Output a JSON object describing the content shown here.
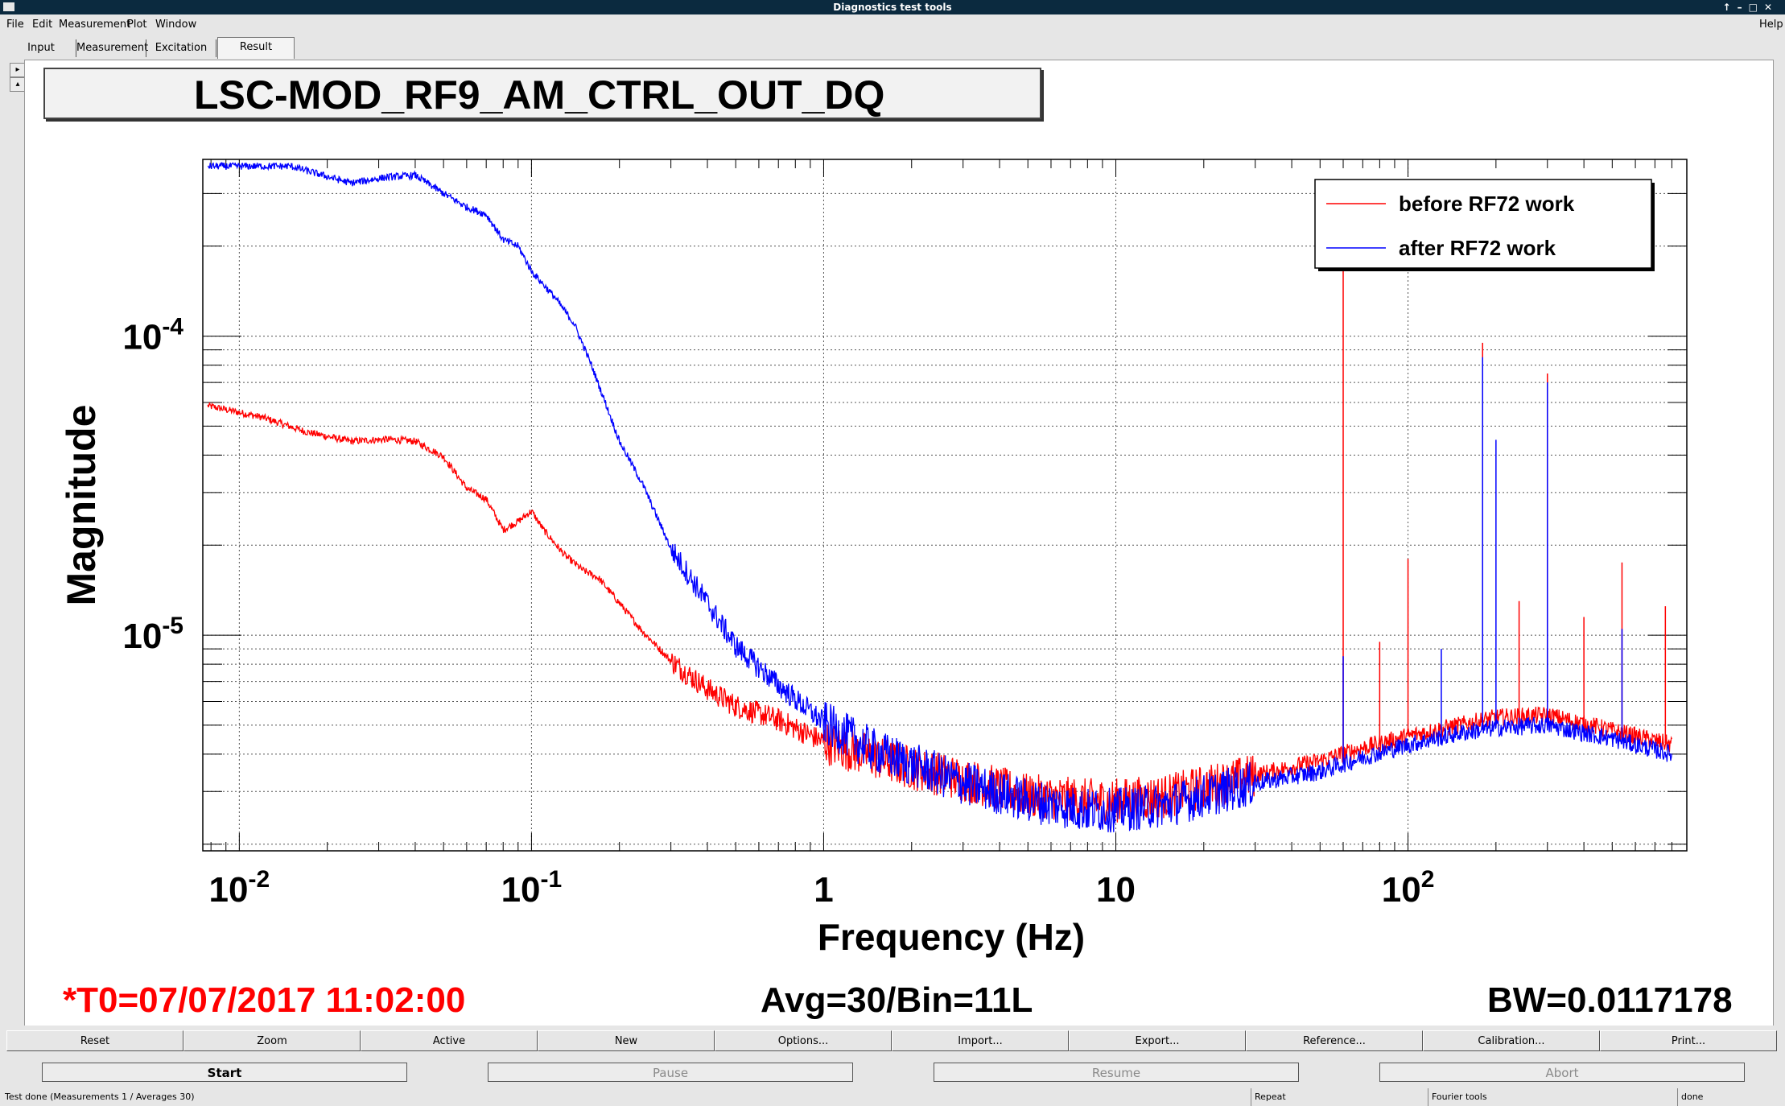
{
  "window": {
    "title": "Diagnostics test tools"
  },
  "menu": {
    "file": "File",
    "edit": "Edit",
    "measurement": "Measurement",
    "plot": "Plot",
    "window": "Window",
    "help": "Help"
  },
  "tabs": [
    "Input",
    "Measurement",
    "Excitation",
    "Result"
  ],
  "plot": {
    "title": "LSC-MOD_RF9_AM_CTRL_OUT_DQ",
    "t0": "*T0=07/07/2017 11:02:00",
    "avg": "Avg=30/Bin=11L",
    "bw": "BW=0.0117178"
  },
  "colors": {
    "before": "#ff0000",
    "after": "#0000ff",
    "t0": "#ff0000"
  },
  "chart_data": {
    "type": "line",
    "xlabel": "Frequency (Hz)",
    "ylabel": "Magnitude",
    "xscale": "log",
    "yscale": "log",
    "xlim": [
      0.0075,
      900
    ],
    "ylim": [
      1.9e-06,
      0.00039
    ],
    "x_ticks": [
      {
        "value": 0.01,
        "base": "10",
        "exp": "-2"
      },
      {
        "value": 0.1,
        "base": "10",
        "exp": "-1"
      },
      {
        "value": 1,
        "base": "1",
        "exp": ""
      },
      {
        "value": 10,
        "base": "10",
        "exp": ""
      },
      {
        "value": 100,
        "base": "10",
        "exp": "2"
      }
    ],
    "y_ticks": [
      {
        "value": 0.0001,
        "base": "10",
        "exp": "-4"
      },
      {
        "value": 1e-05,
        "base": "10",
        "exp": "-5"
      }
    ],
    "grid": true,
    "legend_position": "top-right",
    "series": [
      {
        "name": "before RF72 work",
        "color": "#ff0000",
        "points": [
          [
            0.0078,
            5.85e-05
          ],
          [
            0.012,
            5.35e-05
          ],
          [
            0.017,
            4.78e-05
          ],
          [
            0.024,
            4.45e-05
          ],
          [
            0.032,
            4.52e-05
          ],
          [
            0.04,
            4.45e-05
          ],
          [
            0.05,
            3.95e-05
          ],
          [
            0.06,
            3.1e-05
          ],
          [
            0.07,
            2.85e-05
          ],
          [
            0.08,
            2.25e-05
          ],
          [
            0.09,
            2.4e-05
          ],
          [
            0.1,
            2.6e-05
          ],
          [
            0.11,
            2.25e-05
          ],
          [
            0.13,
            1.85e-05
          ],
          [
            0.15,
            1.65e-05
          ],
          [
            0.17,
            1.55e-05
          ],
          [
            0.2,
            1.28e-05
          ],
          [
            0.24,
            1.03e-05
          ],
          [
            0.3,
            8.2e-06
          ],
          [
            0.4,
            6.6e-06
          ],
          [
            0.5,
            5.8e-06
          ],
          [
            0.7,
            5.2e-06
          ],
          [
            1,
            4.4e-06
          ],
          [
            1.5,
            3.9e-06
          ],
          [
            2,
            3.6e-06
          ],
          [
            3,
            3.3e-06
          ],
          [
            5,
            2.9e-06
          ],
          [
            8,
            2.8e-06
          ],
          [
            10,
            2.8e-06
          ],
          [
            15,
            2.9e-06
          ],
          [
            20,
            3.1e-06
          ],
          [
            30,
            3.4e-06
          ],
          [
            50,
            3.8e-06
          ],
          [
            70,
            4.2e-06
          ],
          [
            100,
            4.6e-06
          ],
          [
            150,
            5e-06
          ],
          [
            200,
            5.3e-06
          ],
          [
            300,
            5.4e-06
          ],
          [
            500,
            4.8e-06
          ],
          [
            800,
            4.3e-06
          ]
        ],
        "peaks": [
          [
            60,
            0.00023
          ],
          [
            80,
            9.5e-06
          ],
          [
            100,
            1.8e-05
          ],
          [
            180,
            9.5e-05
          ],
          [
            240,
            1.3e-05
          ],
          [
            300,
            7.5e-05
          ],
          [
            400,
            1.15e-05
          ],
          [
            540,
            1.75e-05
          ],
          [
            760,
            1.25e-05
          ]
        ]
      },
      {
        "name": "after RF72 work",
        "color": "#0000ff",
        "points": [
          [
            0.0078,
            0.00037
          ],
          [
            0.015,
            0.00037
          ],
          [
            0.024,
            0.000325
          ],
          [
            0.032,
            0.00034
          ],
          [
            0.04,
            0.000345
          ],
          [
            0.05,
            0.0003
          ],
          [
            0.06,
            0.00027
          ],
          [
            0.07,
            0.000255
          ],
          [
            0.08,
            0.00021
          ],
          [
            0.09,
            0.0002
          ],
          [
            0.1,
            0.000165
          ],
          [
            0.12,
            0.000135
          ],
          [
            0.14,
            0.00011
          ],
          [
            0.16,
            8.05e-05
          ],
          [
            0.18,
            5.9e-05
          ],
          [
            0.2,
            4.45e-05
          ],
          [
            0.24,
            3.2e-05
          ],
          [
            0.3,
            1.95e-05
          ],
          [
            0.4,
            1.28e-05
          ],
          [
            0.5,
            9.2e-06
          ],
          [
            0.7,
            6.8e-06
          ],
          [
            1,
            5.1e-06
          ],
          [
            1.5,
            4.1e-06
          ],
          [
            2,
            3.7e-06
          ],
          [
            3,
            3.2e-06
          ],
          [
            5,
            2.8e-06
          ],
          [
            8,
            2.6e-06
          ],
          [
            10,
            2.6e-06
          ],
          [
            15,
            2.7e-06
          ],
          [
            20,
            2.9e-06
          ],
          [
            30,
            3.2e-06
          ],
          [
            50,
            3.5e-06
          ],
          [
            70,
            3.9e-06
          ],
          [
            100,
            4.3e-06
          ],
          [
            150,
            4.7e-06
          ],
          [
            200,
            4.9e-06
          ],
          [
            300,
            5e-06
          ],
          [
            500,
            4.5e-06
          ],
          [
            800,
            4e-06
          ]
        ],
        "peaks": [
          [
            60,
            8.5e-06
          ],
          [
            130,
            9e-06
          ],
          [
            180,
            8.5e-05
          ],
          [
            200,
            4.5e-05
          ],
          [
            300,
            7e-05
          ],
          [
            540,
            1.05e-05
          ]
        ]
      }
    ]
  },
  "buttons_row1": [
    "Reset",
    "Zoom",
    "Active",
    "New",
    "Options...",
    "Import...",
    "Export...",
    "Reference...",
    "Calibration...",
    "Print..."
  ],
  "buttons_row2": [
    "Start",
    "Pause",
    "Resume",
    "Abort"
  ],
  "status": {
    "main": "Test done (Measurements 1 / Averages 30)",
    "repeat": "Repeat",
    "fourier": "Fourier tools",
    "done": "done"
  }
}
